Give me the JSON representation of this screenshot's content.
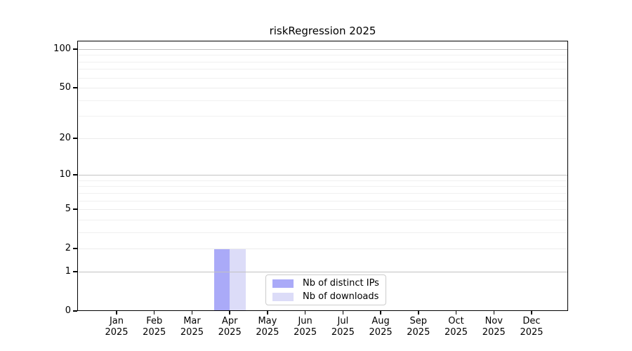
{
  "title": "riskRegression 2025",
  "chart_data": {
    "type": "bar",
    "title": "riskRegression 2025",
    "categories": [
      "Jan",
      "Feb",
      "Mar",
      "Apr",
      "May",
      "Jun",
      "Jul",
      "Aug",
      "Sep",
      "Oct",
      "Nov",
      "Dec"
    ],
    "category_year": "2025",
    "series": [
      {
        "name": "Nb of distinct IPs",
        "color": "#aaaaf8",
        "values": [
          0,
          0,
          0,
          2,
          0,
          0,
          0,
          0,
          0,
          0,
          0,
          0
        ]
      },
      {
        "name": "Nb of downloads",
        "color": "#dcdcf8",
        "values": [
          0,
          0,
          0,
          2,
          0,
          0,
          0,
          0,
          0,
          0,
          0,
          0
        ]
      }
    ],
    "y_scale": "log1p",
    "y_ticks": [
      0,
      1,
      2,
      5,
      10,
      20,
      50,
      100
    ],
    "y_minor_gridlines": [
      3,
      4,
      6,
      7,
      8,
      9,
      30,
      40,
      60,
      70,
      80,
      90
    ],
    "ylim": [
      0,
      116
    ],
    "xlabel": "",
    "ylabel": "",
    "grid": true,
    "legend_position": "inside lower center"
  },
  "colors": {
    "background": "#ffffff",
    "axis": "#000000",
    "major_gridline": "#c2c2c2",
    "light_gridline": "#ececec",
    "minor_gridline": "#f0f0f0",
    "legend_border": "#cccccc",
    "bar_distinct_ips": "#aaaaf8",
    "bar_downloads": "#dcdcf8"
  }
}
